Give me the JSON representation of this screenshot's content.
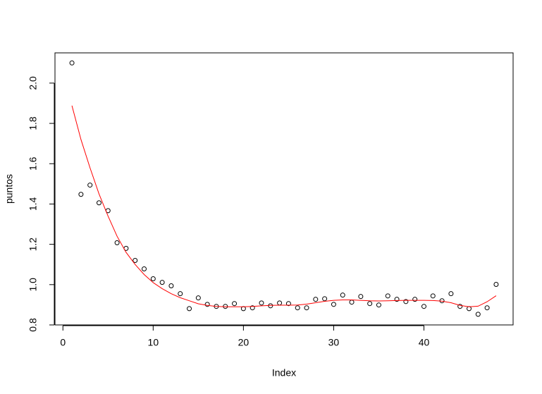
{
  "chart_data": {
    "type": "scatter",
    "xlabel": "Index",
    "ylabel": "puntos",
    "x": [
      1,
      2,
      3,
      4,
      5,
      6,
      7,
      8,
      9,
      10,
      11,
      12,
      13,
      14,
      15,
      16,
      17,
      18,
      19,
      20,
      21,
      22,
      23,
      24,
      25,
      26,
      27,
      28,
      29,
      30,
      31,
      32,
      33,
      34,
      35,
      36,
      37,
      38,
      39,
      40,
      41,
      42,
      43,
      44,
      45,
      46,
      47,
      48
    ],
    "series": [
      {
        "type": "scatter",
        "color": "#000000",
        "values": [
          2.1,
          1.448,
          1.494,
          1.406,
          1.367,
          1.208,
          1.18,
          1.12,
          1.078,
          1.029,
          1.011,
          0.994,
          0.955,
          0.881,
          0.934,
          0.902,
          0.892,
          0.892,
          0.906,
          0.881,
          0.885,
          0.909,
          0.895,
          0.909,
          0.906,
          0.885,
          0.885,
          0.927,
          0.93,
          0.902,
          0.948,
          0.913,
          0.941,
          0.906,
          0.899,
          0.944,
          0.927,
          0.916,
          0.927,
          0.892,
          0.944,
          0.92,
          0.955,
          0.892,
          0.881,
          0.853,
          0.885,
          1.001
        ]
      },
      {
        "type": "line",
        "color": "#ff0000",
        "values": [
          1.888,
          1.72,
          1.58,
          1.45,
          1.34,
          1.24,
          1.16,
          1.1,
          1.05,
          1.01,
          0.98,
          0.955,
          0.935,
          0.92,
          0.905,
          0.897,
          0.892,
          0.89,
          0.89,
          0.89,
          0.892,
          0.895,
          0.897,
          0.898,
          0.898,
          0.899,
          0.903,
          0.91,
          0.917,
          0.922,
          0.924,
          0.924,
          0.922,
          0.92,
          0.919,
          0.92,
          0.921,
          0.922,
          0.922,
          0.922,
          0.921,
          0.918,
          0.91,
          0.897,
          0.89,
          0.893,
          0.915,
          0.945
        ]
      }
    ],
    "xlim": [
      -0.88,
      49.88
    ],
    "xticks": [
      0,
      10,
      20,
      30,
      40
    ],
    "ylim": [
      0.8,
      2.15
    ],
    "yticks": [
      0.8,
      {
        "value": 1,
        "label": "1.0"
      },
      1.2,
      1.4,
      1.6,
      1.8,
      {
        "value": 2,
        "label": "2.0"
      }
    ]
  }
}
